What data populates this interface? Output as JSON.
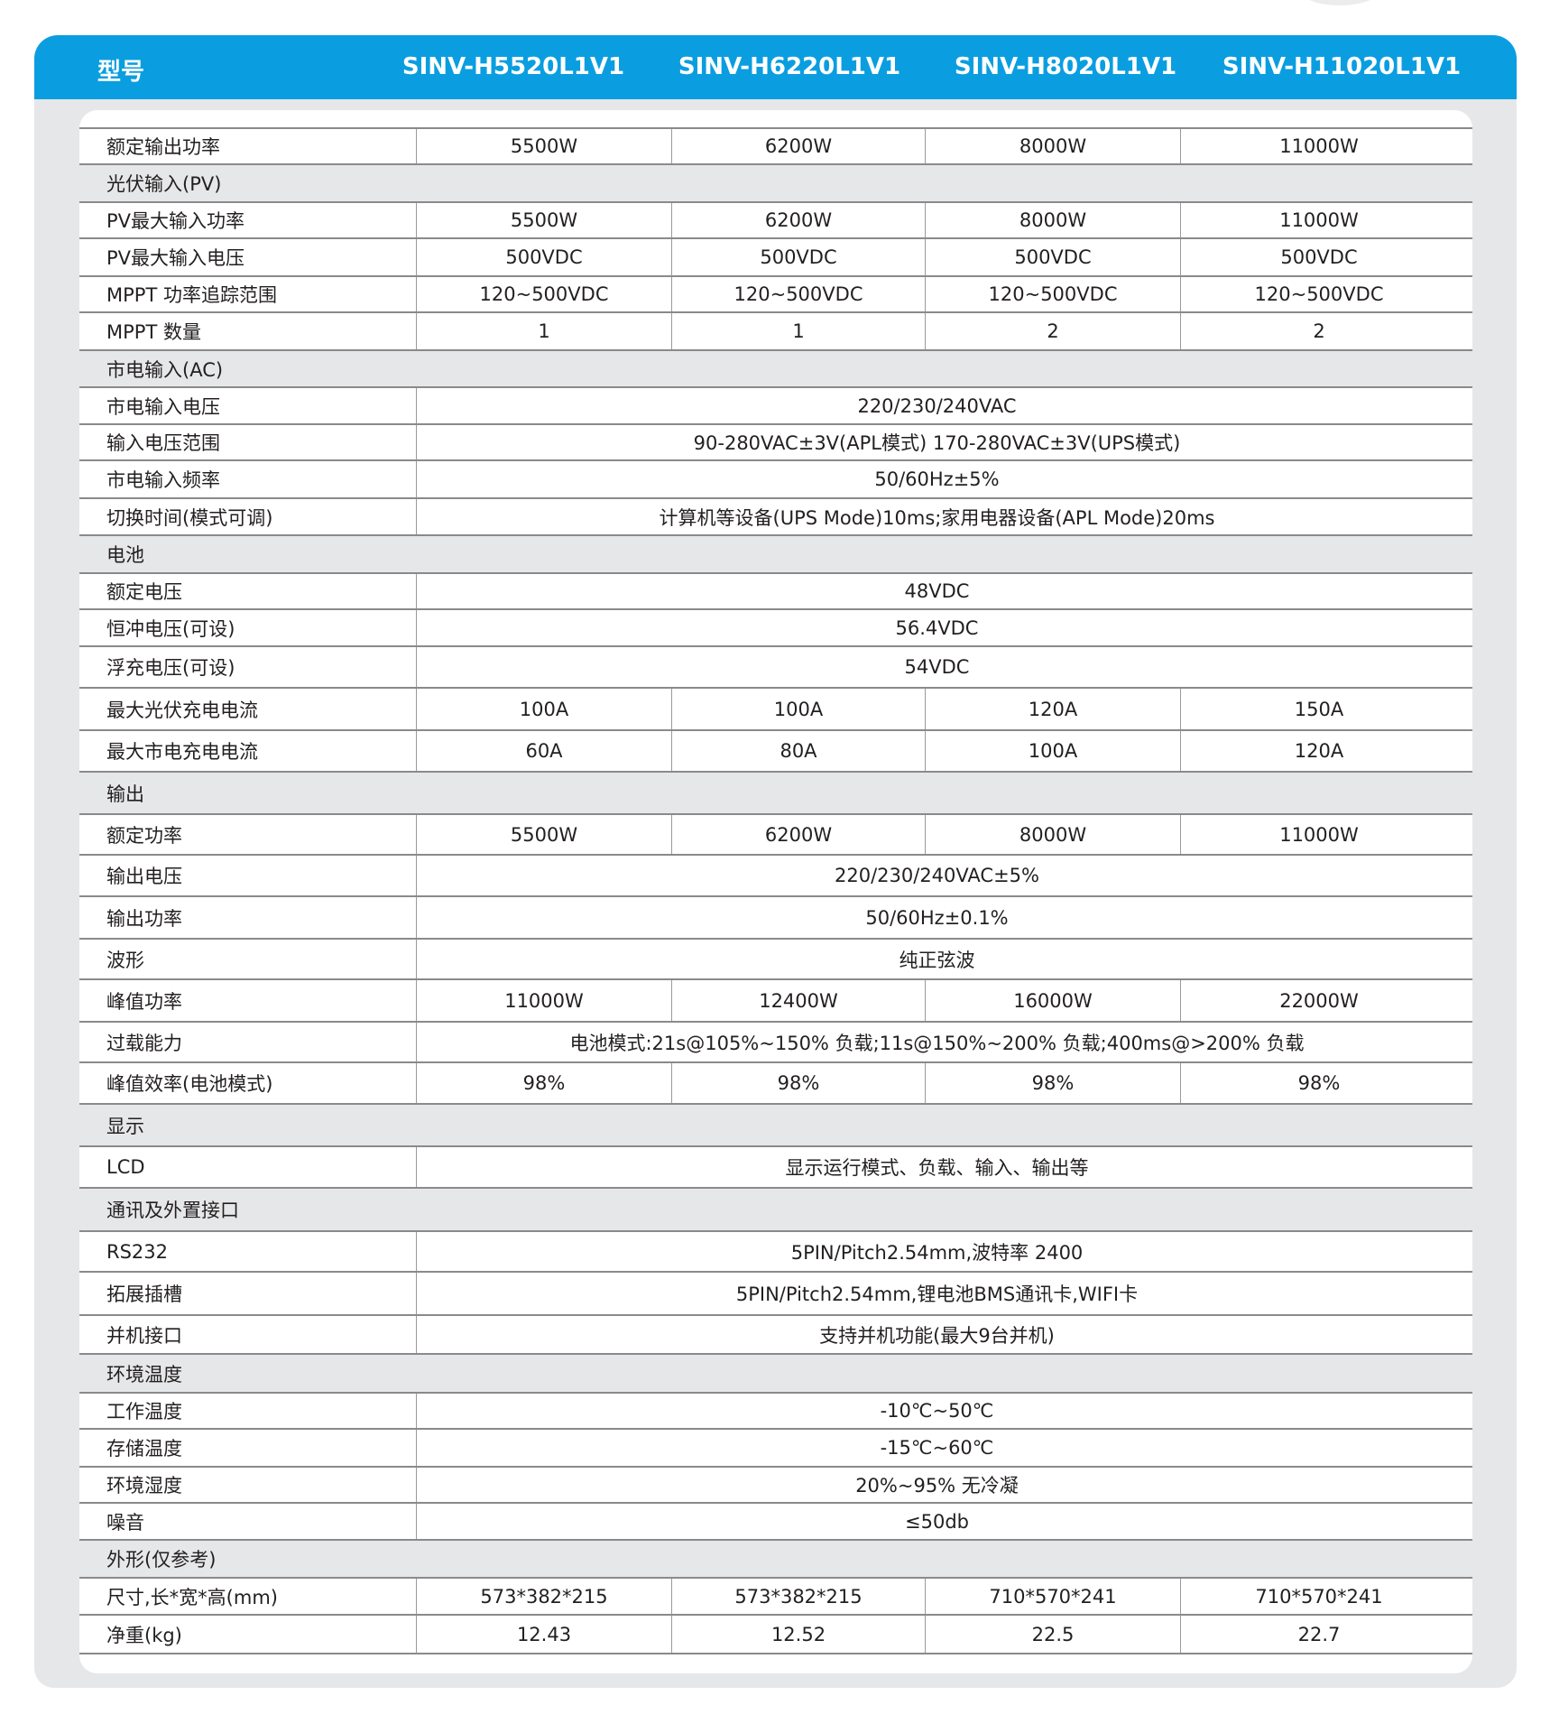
{
  "header": {
    "label": "型号",
    "models": [
      "SINV-H5520L1V1",
      "SINV-H6220L1V1",
      "SINV-H8020L1V1",
      "SINV-H11020L1V1"
    ]
  },
  "colors": {
    "header_blue": "#0a9ee0",
    "section_gray": "#e6e7e8"
  },
  "rows": [
    {
      "label": "额定输出功率",
      "values": [
        "5500W",
        "6200W",
        "8000W",
        "11000W"
      ]
    },
    {
      "section": true,
      "label": "光伏输入(PV)"
    },
    {
      "label": "PV最大输入功率",
      "values": [
        "5500W",
        "6200W",
        "8000W",
        "11000W"
      ]
    },
    {
      "label": "PV最大输入电压",
      "values": [
        "500VDC",
        "500VDC",
        "500VDC",
        "500VDC"
      ]
    },
    {
      "label": "MPPT 功率追踪范围",
      "values": [
        "120~500VDC",
        "120~500VDC",
        "120~500VDC",
        "120~500VDC"
      ]
    },
    {
      "label": "MPPT 数量",
      "values": [
        "1",
        "1",
        "2",
        "2"
      ]
    },
    {
      "section": true,
      "label": "市电输入(AC)"
    },
    {
      "label": "市电输入电压",
      "value": "220/230/240VAC"
    },
    {
      "label": "输入电压范围",
      "value": "90-280VAC±3V(APL模式) 170-280VAC±3V(UPS模式)"
    },
    {
      "label": "市电输入频率",
      "value": "50/60Hz±5%"
    },
    {
      "label": "切换时间(模式可调)",
      "value": "计算机等设备(UPS Mode)10ms;家用电器设备(APL Mode)20ms"
    },
    {
      "section": true,
      "label": "电池"
    },
    {
      "label": "额定电压",
      "value": "48VDC"
    },
    {
      "label": "恒冲电压(可设)",
      "value": "56.4VDC"
    },
    {
      "label": "浮充电压(可设)",
      "value": "54VDC"
    },
    {
      "label": "最大光伏充电电流",
      "values": [
        "100A",
        "100A",
        "120A",
        "150A"
      ]
    },
    {
      "label": "最大市电充电电流",
      "values": [
        "60A",
        "80A",
        "100A",
        "120A"
      ]
    },
    {
      "section": true,
      "label": "输出"
    },
    {
      "label": "额定功率",
      "values": [
        "5500W",
        "6200W",
        "8000W",
        "11000W"
      ]
    },
    {
      "label": "输出电压",
      "value": "220/230/240VAC±5%"
    },
    {
      "label": "输出功率",
      "value": "50/60Hz±0.1%"
    },
    {
      "label": "波形",
      "value": "纯正弦波"
    },
    {
      "label": "峰值功率",
      "values": [
        "11000W",
        "12400W",
        "16000W",
        "22000W"
      ]
    },
    {
      "label": "过载能力",
      "value": "电池模式:21s@105%~150% 负载;11s@150%~200% 负载;400ms@>200% 负载"
    },
    {
      "label": "峰值效率(电池模式)",
      "values": [
        "98%",
        "98%",
        "98%",
        "98%"
      ]
    },
    {
      "section": true,
      "label": "显示"
    },
    {
      "label": "LCD",
      "value": "显示运行模式、负载、输入、输出等"
    },
    {
      "section": true,
      "label": "通讯及外置接口"
    },
    {
      "label": "RS232",
      "value": "5PIN/Pitch2.54mm,波特率 2400"
    },
    {
      "label": "拓展插槽",
      "value": "5PIN/Pitch2.54mm,锂电池BMS通讯卡,WIFI卡"
    },
    {
      "label": "并机接口",
      "value": "支持并机功能(最大9台并机)"
    },
    {
      "section": true,
      "label": "环境温度"
    },
    {
      "label": "工作温度",
      "value": "-10℃~50℃"
    },
    {
      "label": "存储温度",
      "value": "-15℃~60℃"
    },
    {
      "label": "环境湿度",
      "value": "20%~95% 无冷凝"
    },
    {
      "label": "噪音",
      "value": "≤50db"
    },
    {
      "section": true,
      "label": "外形(仅参考)"
    },
    {
      "label": "尺寸,长*宽*高(mm)",
      "values": [
        "573*382*215",
        "573*382*215",
        "710*570*241",
        "710*570*241"
      ]
    },
    {
      "label": "净重(kg)",
      "values": [
        "12.43",
        "12.52",
        "22.5",
        "22.7"
      ]
    }
  ]
}
